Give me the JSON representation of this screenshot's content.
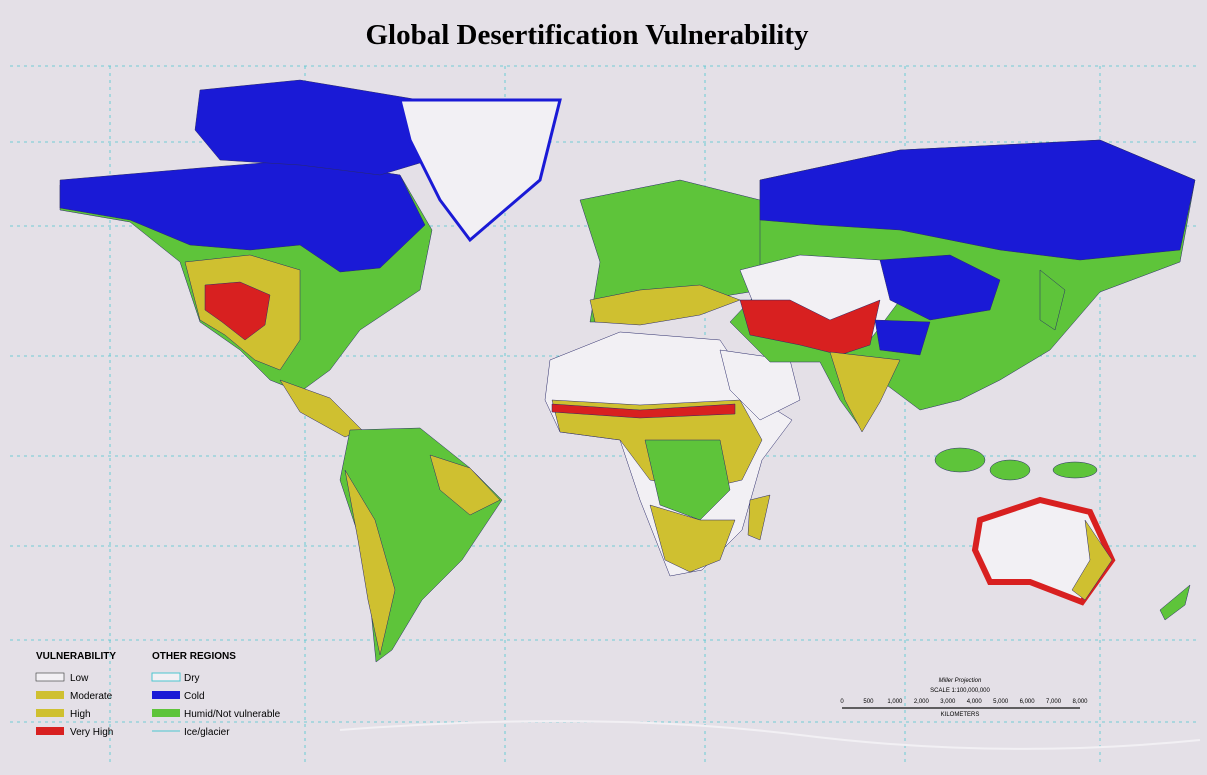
{
  "header": {
    "title": "Global Desertification Vulnerability"
  },
  "legend": {
    "vulnerability": {
      "heading": "VULNERABILITY",
      "items": [
        "Low",
        "Moderate",
        "High",
        "Very High"
      ]
    },
    "other_regions": {
      "heading": "OTHER REGIONS",
      "items": [
        "Dry",
        "Cold",
        "Humid/Not vulnerable",
        "Ice/glacier"
      ]
    }
  },
  "scale": {
    "projection": "Miller Projection",
    "ratio": "SCALE 1:100,000,000",
    "ticks": [
      "0",
      "500",
      "1,000",
      "2,000",
      "3,000",
      "4,000",
      "5,000",
      "6,000",
      "7,000",
      "8,000"
    ],
    "unit": "KILOMETERS"
  }
}
